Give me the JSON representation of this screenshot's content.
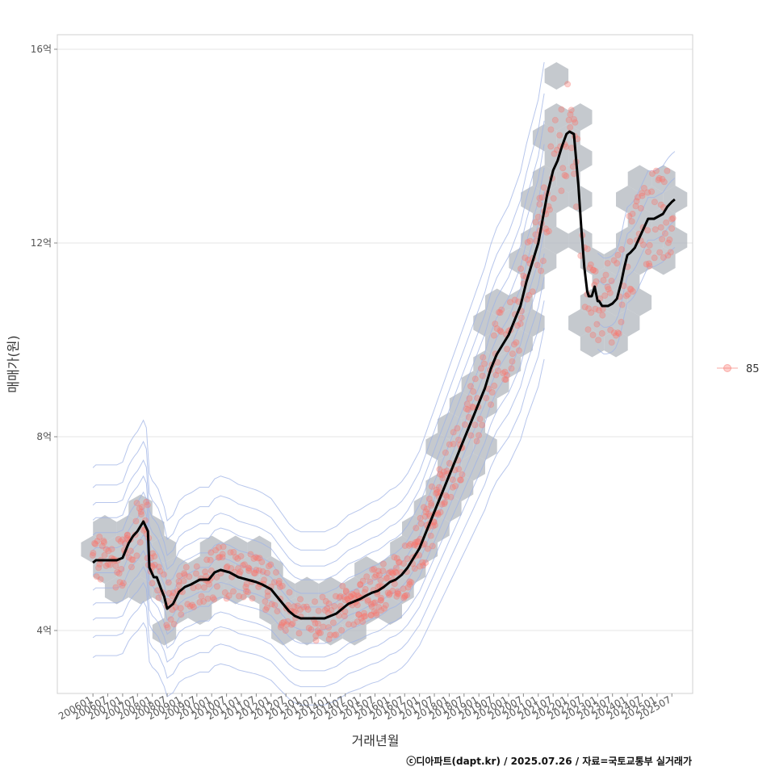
{
  "chart_data": {
    "type": "scatter",
    "xlabel": "거래년월",
    "ylabel": "매매가(원)",
    "caption": "ⓒ디아파트(dapt.kr) / 2025.07.26 / 자료=국토교통부 실거래가",
    "x_tick_labels": [
      "200601",
      "200607",
      "200701",
      "200707",
      "200801",
      "200807",
      "200901",
      "200907",
      "201001",
      "201007",
      "201101",
      "201107",
      "201201",
      "201207",
      "201301",
      "201307",
      "201401",
      "201407",
      "201501",
      "201507",
      "201601",
      "201607",
      "201701",
      "201707",
      "201801",
      "201807",
      "201901",
      "201907",
      "202001",
      "202007",
      "202101",
      "202107",
      "202201",
      "202207",
      "202301",
      "202307",
      "202401",
      "202407",
      "202501",
      "202507"
    ],
    "y_tick_labels": [
      "4억",
      "8억",
      "12억",
      "16억"
    ],
    "y_ticks": [
      4,
      8,
      12,
      16
    ],
    "ylim": [
      2.7,
      16.3
    ],
    "xlim": [
      2004.8,
      2026.2
    ],
    "grid": true,
    "legend": {
      "position": "right",
      "entries": [
        {
          "label": "85",
          "color": "#F8766D"
        }
      ]
    },
    "colors": {
      "points": "#F8766D",
      "hex": "#b7bcc2",
      "contour": "#9fb3e6",
      "trend": "#000000"
    },
    "series": [
      {
        "kind": "trend",
        "x": [
          2006.0,
          2006.1,
          2006.4,
          2006.8,
          2007.0,
          2007.2,
          2007.35,
          2007.5,
          2007.7,
          2007.85,
          2007.9,
          2008.05,
          2008.15,
          2008.3,
          2008.4,
          2008.5,
          2008.7,
          2008.9,
          2009.1,
          2009.3,
          2009.6,
          2009.9,
          2010.1,
          2010.3,
          2010.6,
          2010.9,
          2011.2,
          2011.5,
          2011.7,
          2012.0,
          2012.2,
          2012.4,
          2012.6,
          2012.8,
          2013.0,
          2013.2,
          2013.4,
          2013.6,
          2013.8,
          2014.0,
          2014.2,
          2014.4,
          2014.6,
          2014.8,
          2015.0,
          2015.2,
          2015.4,
          2015.6,
          2015.8,
          2016.0,
          2016.2,
          2016.4,
          2016.6,
          2016.8,
          2017.0,
          2017.2,
          2017.4,
          2017.6,
          2017.8,
          2018.0,
          2018.2,
          2018.4,
          2018.6,
          2018.8,
          2019.0,
          2019.2,
          2019.4,
          2019.6,
          2019.8,
          2020.0,
          2020.2,
          2020.4,
          2020.6,
          2020.75,
          2020.9,
          2021.0,
          2021.15,
          2021.3,
          2021.5,
          2021.65,
          2021.8,
          2021.95,
          2022.05,
          2022.2,
          2022.35,
          2022.45,
          2022.55,
          2022.65,
          2022.7,
          2022.8,
          2022.9,
          2023.0,
          2023.05,
          2023.15,
          2023.25,
          2023.35,
          2023.5,
          2023.65,
          2023.8,
          2023.9,
          2024.0,
          2024.1,
          2024.25,
          2024.4,
          2024.55,
          2024.7,
          2024.8,
          2024.9,
          2025.05,
          2025.2,
          2025.35,
          2025.5,
          2025.6
        ],
        "y": [
          5.4,
          5.45,
          5.45,
          5.45,
          5.5,
          5.8,
          5.95,
          6.05,
          6.25,
          6.05,
          5.3,
          5.1,
          5.1,
          4.85,
          4.7,
          4.45,
          4.55,
          4.8,
          4.9,
          4.95,
          5.05,
          5.05,
          5.2,
          5.25,
          5.2,
          5.1,
          5.05,
          5.0,
          4.95,
          4.85,
          4.7,
          4.55,
          4.4,
          4.3,
          4.25,
          4.25,
          4.25,
          4.25,
          4.25,
          4.3,
          4.35,
          4.45,
          4.55,
          4.6,
          4.65,
          4.72,
          4.78,
          4.82,
          4.9,
          5.0,
          5.05,
          5.15,
          5.3,
          5.5,
          5.7,
          6.0,
          6.3,
          6.6,
          6.9,
          7.2,
          7.5,
          7.8,
          8.1,
          8.4,
          8.7,
          9.0,
          9.4,
          9.7,
          9.9,
          10.1,
          10.4,
          10.7,
          11.2,
          11.5,
          11.8,
          12.0,
          12.5,
          13.0,
          13.5,
          13.7,
          14.0,
          14.25,
          14.3,
          14.25,
          13.2,
          12.3,
          11.5,
          11.0,
          10.9,
          10.9,
          11.1,
          10.8,
          10.8,
          10.7,
          10.7,
          10.7,
          10.75,
          10.85,
          11.2,
          11.5,
          11.75,
          11.8,
          11.9,
          12.1,
          12.3,
          12.5,
          12.5,
          12.5,
          12.55,
          12.6,
          12.75,
          12.85,
          12.9
        ]
      }
    ]
  }
}
